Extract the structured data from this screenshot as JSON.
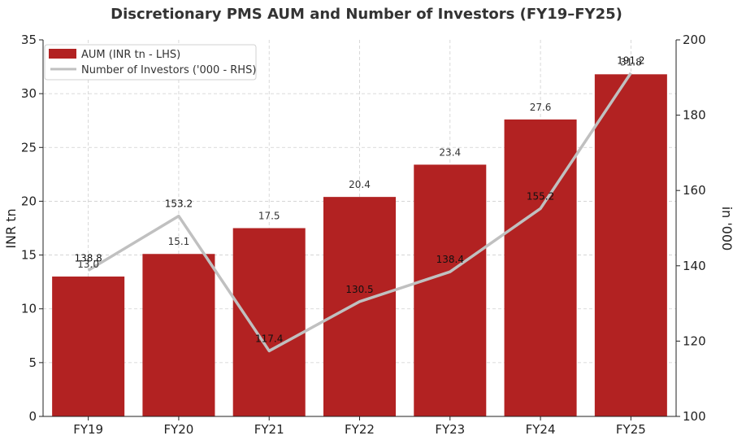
{
  "chart_data": {
    "type": "bar",
    "title": "Discretionary PMS AUM and Number of Investors (FY19–FY25)",
    "categories": [
      "FY19",
      "FY20",
      "FY21",
      "FY22",
      "FY23",
      "FY24",
      "FY25"
    ],
    "series": [
      {
        "name": "AUM (INR tn - LHS)",
        "type": "bar",
        "axis": "left",
        "color": "#b22222",
        "values": [
          13.0,
          15.1,
          17.5,
          20.4,
          23.4,
          27.6,
          31.8
        ],
        "labels": [
          "13.0",
          "15.1",
          "17.5",
          "20.4",
          "23.4",
          "27.6",
          "31.8"
        ]
      },
      {
        "name": "Number of Investors ('000 - RHS)",
        "type": "line",
        "axis": "right",
        "color": "#c0c0c0",
        "values": [
          138.8,
          153.2,
          117.4,
          130.5,
          138.4,
          155.2,
          191.2
        ],
        "labels": [
          "138.8",
          "153.2",
          "117.4",
          "130.5",
          "138.4",
          "155.2",
          "191.2"
        ]
      }
    ],
    "ylabel": "INR tn",
    "y2label": "in '000",
    "ylim": [
      0,
      35
    ],
    "y2lim": [
      100,
      200
    ],
    "yticks": [
      "0",
      "5",
      "10",
      "15",
      "20",
      "25",
      "30",
      "35"
    ],
    "y2ticks": [
      "100",
      "120",
      "140",
      "160",
      "180",
      "200"
    ],
    "grid": true,
    "legend": "top-left"
  }
}
